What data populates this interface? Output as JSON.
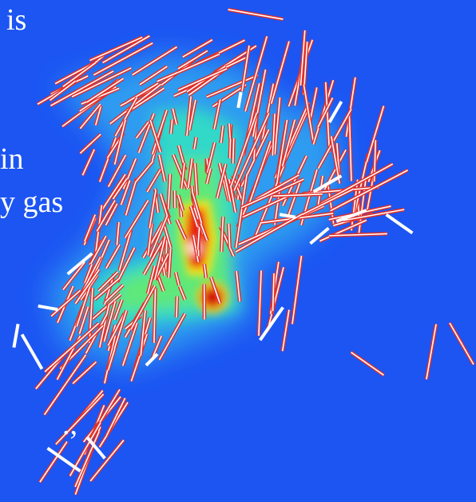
{
  "texts": [
    "is",
    "in",
    "y gas",
    ".,"
  ]
}
